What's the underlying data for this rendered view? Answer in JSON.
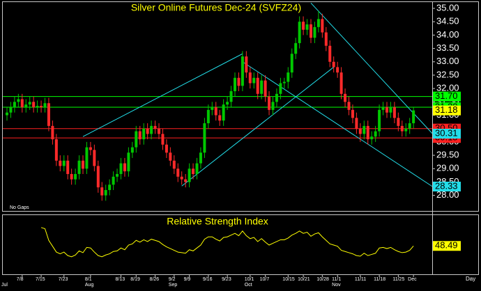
{
  "chart_data": {
    "type": "candlestick",
    "title": "Silver Online Futures Dec-24 (SVFZ24)",
    "note": "No Gaps",
    "x_unit": "Day",
    "categories": [
      null,
      null,
      null,
      null,
      "7/8",
      null,
      null,
      null,
      null,
      "7/15",
      null,
      null,
      null,
      null,
      null,
      "7/23",
      null,
      null,
      null,
      null,
      null,
      null,
      "8/1",
      null,
      null,
      null,
      null,
      null,
      null,
      null,
      "8/13",
      null,
      null,
      null,
      "8/19",
      null,
      null,
      null,
      null,
      "8/26",
      null,
      null,
      null,
      null,
      "9/2",
      null,
      null,
      null,
      "9/9",
      null,
      null,
      null,
      null,
      "9/16",
      null,
      null,
      null,
      null,
      "9/23",
      null,
      null,
      null,
      null,
      null,
      "10/1",
      null,
      null,
      null,
      "10/7",
      null,
      null,
      null,
      null,
      null,
      "10/15",
      null,
      null,
      null,
      "10/21",
      null,
      null,
      null,
      null,
      "10/28",
      null,
      null,
      null,
      "11/1",
      null,
      null,
      null,
      null,
      null,
      "11/11",
      null,
      null,
      null,
      null,
      "11/18",
      null,
      null,
      null,
      null,
      "11/25",
      null,
      null,
      null,
      "Dec"
    ],
    "months": [
      "Jul",
      null,
      null,
      null,
      null,
      null,
      null,
      null,
      null,
      null,
      null,
      null,
      null,
      null,
      null,
      null,
      null,
      null,
      null,
      null,
      null,
      null,
      "Aug",
      null,
      null,
      null,
      null,
      null,
      null,
      null,
      null,
      null,
      null,
      null,
      null,
      null,
      null,
      null,
      null,
      null,
      null,
      null,
      null,
      null,
      "Sep",
      null,
      null,
      null,
      null,
      null,
      null,
      null,
      null,
      null,
      null,
      null,
      null,
      null,
      null,
      null,
      null,
      null,
      null,
      null,
      "Oct",
      null,
      null,
      null,
      null,
      null,
      null,
      null,
      null,
      null,
      null,
      null,
      null,
      null,
      null,
      null,
      null,
      null,
      null,
      null,
      null,
      null,
      null,
      "Nov",
      null,
      null,
      null,
      null,
      null,
      null,
      null,
      null,
      null,
      null,
      null,
      null,
      null,
      null,
      null,
      null,
      null,
      null,
      null,
      null
    ],
    "up_color": "#00c800",
    "down_color": "#ff2a2a",
    "ohlc": [
      [
        31.0,
        31.3,
        30.8,
        31.1
      ],
      [
        31.1,
        31.5,
        30.9,
        31.3
      ],
      [
        31.3,
        31.7,
        31.1,
        31.5
      ],
      [
        31.5,
        31.8,
        31.3,
        31.6
      ],
      [
        31.6,
        31.8,
        31.1,
        31.3
      ],
      [
        31.3,
        31.6,
        31.1,
        31.4
      ],
      [
        31.4,
        31.7,
        31.2,
        31.5
      ],
      [
        31.5,
        31.7,
        31.1,
        31.3
      ],
      [
        31.3,
        31.55,
        31.1,
        31.35
      ],
      [
        31.35,
        31.55,
        31.1,
        31.3
      ],
      [
        31.3,
        31.65,
        31.1,
        31.45
      ],
      [
        31.45,
        31.65,
        30.4,
        30.6
      ],
      [
        30.6,
        30.8,
        29.9,
        30.1
      ],
      [
        30.1,
        30.3,
        29.1,
        29.3
      ],
      [
        29.3,
        29.5,
        28.9,
        29.1
      ],
      [
        29.1,
        29.5,
        28.9,
        29.3
      ],
      [
        29.3,
        29.5,
        28.6,
        28.8
      ],
      [
        28.8,
        29.0,
        28.4,
        28.6
      ],
      [
        28.6,
        29.0,
        28.4,
        28.8
      ],
      [
        28.8,
        29.5,
        28.6,
        29.3
      ],
      [
        29.3,
        29.5,
        28.8,
        29.0
      ],
      [
        29.0,
        30.0,
        28.8,
        29.8
      ],
      [
        29.8,
        30.0,
        29.5,
        29.7
      ],
      [
        29.7,
        29.9,
        28.9,
        29.1
      ],
      [
        29.1,
        29.3,
        28.1,
        28.3
      ],
      [
        28.3,
        28.5,
        27.8,
        28.0
      ],
      [
        28.0,
        28.4,
        27.8,
        28.2
      ],
      [
        28.2,
        28.6,
        28.0,
        28.4
      ],
      [
        28.4,
        28.9,
        28.2,
        28.7
      ],
      [
        28.7,
        29.0,
        28.5,
        28.8
      ],
      [
        28.8,
        29.4,
        28.6,
        29.2
      ],
      [
        29.2,
        29.4,
        28.7,
        28.9
      ],
      [
        28.9,
        29.8,
        28.7,
        29.6
      ],
      [
        29.6,
        30.0,
        29.4,
        29.8
      ],
      [
        29.8,
        30.6,
        29.6,
        30.4
      ],
      [
        30.4,
        30.6,
        29.9,
        30.1
      ],
      [
        30.1,
        30.7,
        29.9,
        30.5
      ],
      [
        30.5,
        30.7,
        30.1,
        30.3
      ],
      [
        30.3,
        30.8,
        30.1,
        30.6
      ],
      [
        30.6,
        30.8,
        30.3,
        30.5
      ],
      [
        30.5,
        30.7,
        30.1,
        30.3
      ],
      [
        30.3,
        30.5,
        29.7,
        29.9
      ],
      [
        29.9,
        30.1,
        29.4,
        29.6
      ],
      [
        29.6,
        29.8,
        29.1,
        29.3
      ],
      [
        29.3,
        29.5,
        28.8,
        29.0
      ],
      [
        29.0,
        29.2,
        28.5,
        28.7
      ],
      [
        28.7,
        28.9,
        28.4,
        28.6
      ],
      [
        28.6,
        28.8,
        28.3,
        28.5
      ],
      [
        28.5,
        29.2,
        28.3,
        29.0
      ],
      [
        29.0,
        29.2,
        28.6,
        28.8
      ],
      [
        28.8,
        29.4,
        28.6,
        29.2
      ],
      [
        29.2,
        29.8,
        29.0,
        29.6
      ],
      [
        29.6,
        30.9,
        29.4,
        30.7
      ],
      [
        30.7,
        31.4,
        30.5,
        31.2
      ],
      [
        31.2,
        31.5,
        31.0,
        31.3
      ],
      [
        31.3,
        31.5,
        30.8,
        31.0
      ],
      [
        31.0,
        31.2,
        30.6,
        30.8
      ],
      [
        30.8,
        31.6,
        30.6,
        31.4
      ],
      [
        31.4,
        31.7,
        31.2,
        31.5
      ],
      [
        31.5,
        32.1,
        31.3,
        31.9
      ],
      [
        31.9,
        32.6,
        31.7,
        32.4
      ],
      [
        32.4,
        32.6,
        31.9,
        32.1
      ],
      [
        32.1,
        33.4,
        31.9,
        33.2
      ],
      [
        33.2,
        33.4,
        32.4,
        32.6
      ],
      [
        32.6,
        32.8,
        32.0,
        32.2
      ],
      [
        32.2,
        32.6,
        32.0,
        32.4
      ],
      [
        32.4,
        32.6,
        31.6,
        31.8
      ],
      [
        31.8,
        32.5,
        31.6,
        32.3
      ],
      [
        32.3,
        32.5,
        31.5,
        31.7
      ],
      [
        31.7,
        31.9,
        31.0,
        31.2
      ],
      [
        31.2,
        31.7,
        31.0,
        31.5
      ],
      [
        31.5,
        32.0,
        31.3,
        31.8
      ],
      [
        31.8,
        32.4,
        31.6,
        32.2
      ],
      [
        32.2,
        32.4,
        32.0,
        32.25
      ],
      [
        32.25,
        32.8,
        32.0,
        32.6
      ],
      [
        32.6,
        33.5,
        32.4,
        33.3
      ],
      [
        33.3,
        33.9,
        33.1,
        33.7
      ],
      [
        33.7,
        34.7,
        33.5,
        34.5
      ],
      [
        34.5,
        34.7,
        34.0,
        34.2
      ],
      [
        34.2,
        34.6,
        34.0,
        34.4
      ],
      [
        34.4,
        34.6,
        33.7,
        33.9
      ],
      [
        33.9,
        34.5,
        33.7,
        34.3
      ],
      [
        34.3,
        34.9,
        34.1,
        34.6
      ],
      [
        34.6,
        34.8,
        33.9,
        34.1
      ],
      [
        34.1,
        34.3,
        33.4,
        33.6
      ],
      [
        33.6,
        33.8,
        32.8,
        33.0
      ],
      [
        33.0,
        33.2,
        32.6,
        32.8
      ],
      [
        32.8,
        33.0,
        32.4,
        32.6
      ],
      [
        32.6,
        32.8,
        31.6,
        31.8
      ],
      [
        31.8,
        32.0,
        31.3,
        31.5
      ],
      [
        31.5,
        31.7,
        31.0,
        31.2
      ],
      [
        31.2,
        31.4,
        30.7,
        30.9
      ],
      [
        30.9,
        31.1,
        30.3,
        30.5
      ],
      [
        30.5,
        30.7,
        30.0,
        30.3
      ],
      [
        30.3,
        30.8,
        30.1,
        30.6
      ],
      [
        30.6,
        30.8,
        29.9,
        30.1
      ],
      [
        30.1,
        30.4,
        29.9,
        30.2
      ],
      [
        30.2,
        30.6,
        30.0,
        30.4
      ],
      [
        30.4,
        31.4,
        30.2,
        31.2
      ],
      [
        31.2,
        31.5,
        31.0,
        31.3
      ],
      [
        31.3,
        31.5,
        30.9,
        31.1
      ],
      [
        31.1,
        31.5,
        30.9,
        31.3
      ],
      [
        31.3,
        31.5,
        30.7,
        30.9
      ],
      [
        30.9,
        31.1,
        30.4,
        30.6
      ],
      [
        30.6,
        30.8,
        30.2,
        30.4
      ],
      [
        30.4,
        30.7,
        30.2,
        30.5
      ],
      [
        30.5,
        30.9,
        30.3,
        30.7
      ],
      [
        30.7,
        31.3,
        30.5,
        31.18
      ]
    ],
    "ylim": [
      27.6,
      35.3
    ],
    "yticks": [
      {
        "value": 28,
        "label": "28.00"
      },
      {
        "value": 28.5,
        "label": "28.50"
      },
      {
        "value": 29,
        "label": "29.00"
      },
      {
        "value": 29.5,
        "label": "29.50"
      },
      {
        "value": 30,
        "label": "30.00"
      },
      {
        "value": 30.5,
        "label": "30.50"
      },
      {
        "value": 31,
        "label": "31.00"
      },
      {
        "value": 31.5,
        "label": "31.50"
      },
      {
        "value": 32,
        "label": "32.00"
      },
      {
        "value": 32.5,
        "label": "32.50"
      },
      {
        "value": 33,
        "label": "33.00"
      },
      {
        "value": 33.5,
        "label": "33.50"
      },
      {
        "value": 34,
        "label": "34.00"
      },
      {
        "value": 34.5,
        "label": "34.50"
      },
      {
        "value": 35,
        "label": "35.00"
      }
    ],
    "levels": [
      {
        "value": 31.7,
        "label": "31.70",
        "color": "#00ff00"
      },
      {
        "value": 31.3,
        "label": "31.30",
        "color": "#00ff00"
      },
      {
        "value": 30.5,
        "label": "30.50",
        "color": "#ff2020"
      },
      {
        "value": 30.15,
        "label": "30.15",
        "color": "#ff2020"
      }
    ],
    "last_label": {
      "value": 31.18,
      "label": "31.18",
      "color": "#ffff00"
    },
    "trendline_color": "#22dde8",
    "trendlines": [
      {
        "from": [
          20,
          30.2
        ],
        "to": [
          62,
          33.3
        ]
      },
      {
        "from": [
          46,
          28.35
        ],
        "to": [
          86,
          32.8
        ]
      },
      {
        "from": [
          80,
          35.2
        ],
        "to": [
          112,
          30.31
        ],
        "label": "30.31"
      },
      {
        "from": [
          62,
          33.0
        ],
        "to": [
          112,
          28.33
        ],
        "label": "28.33"
      }
    ],
    "rsi": {
      "title": "Relative Strength Index",
      "color": "#ffff00",
      "ylim": [
        0,
        100
      ],
      "last_label": "48.49",
      "values": [
        null,
        null,
        null,
        null,
        null,
        null,
        null,
        null,
        null,
        80,
        78,
        58,
        48,
        38,
        35,
        38,
        32,
        30,
        33,
        40,
        37,
        46,
        45,
        38,
        32,
        30,
        33,
        35,
        39,
        40,
        45,
        42,
        50,
        52,
        58,
        55,
        59,
        56,
        60,
        58,
        56,
        51,
        47,
        44,
        41,
        38,
        37,
        36,
        42,
        40,
        45,
        50,
        60,
        64,
        64,
        60,
        57,
        63,
        64,
        67,
        70,
        66,
        74,
        66,
        61,
        63,
        56,
        61,
        55,
        50,
        53,
        56,
        59,
        59,
        62,
        67,
        70,
        74,
        70,
        72,
        65,
        69,
        71,
        64,
        58,
        52,
        50,
        48,
        41,
        39,
        37,
        35,
        32,
        31,
        36,
        32,
        34,
        36,
        45,
        46,
        44,
        46,
        42,
        39,
        37,
        38,
        41,
        48.49
      ]
    }
  }
}
